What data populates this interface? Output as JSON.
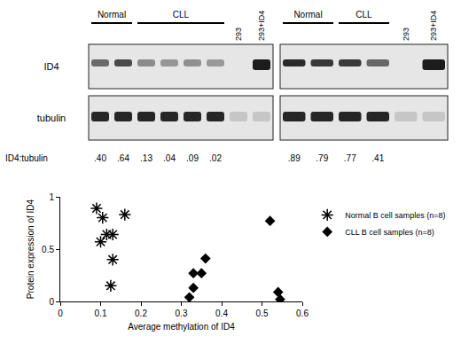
{
  "chart_data": {
    "type": "scatter",
    "x_label": "Average methylation of ID4",
    "y_label": "Protein expression of ID4",
    "xlim": [
      0,
      0.6
    ],
    "xticks": [
      0,
      0.1,
      0.2,
      0.3,
      0.4,
      0.5,
      0.6
    ],
    "ylim": [
      0,
      1
    ],
    "yticks": [
      0,
      0.5,
      1
    ],
    "grid": false,
    "legend": "right",
    "series": [
      {
        "name": "Normal B cell samples (n=8)",
        "color": "#000000",
        "marker": "asterisk",
        "x": [
          0.09,
          0.105,
          0.1,
          0.115,
          0.13,
          0.16,
          0.13,
          0.125
        ],
        "values": [
          0.89,
          0.8,
          0.57,
          0.64,
          0.64,
          0.83,
          0.4,
          0.15
        ]
      },
      {
        "name": "CLL B cell samples (n=8)",
        "color": "#000000",
        "marker": "diamond",
        "x": [
          0.32,
          0.33,
          0.33,
          0.35,
          0.36,
          0.52,
          0.54,
          0.545
        ],
        "values": [
          0.04,
          0.13,
          0.27,
          0.27,
          0.41,
          0.77,
          0.09,
          0.02
        ]
      }
    ]
  },
  "blot": {
    "rows": [
      "ID4",
      "tubulin"
    ],
    "ratio_label": "ID4:tubulin",
    "panels": [
      {
        "groups": [
          {
            "label": "Normal",
            "lanes": [
              {
                "ratio": {
                  "value": 0.4,
                  "label": ".40"
                }
              },
              {
                "ratio": {
                  "value": 0.64,
                  "label": ".64"
                }
              }
            ]
          },
          {
            "label": "CLL",
            "lanes": [
              {
                "ratio": {
                  "value": 0.13,
                  "label": ".13"
                }
              },
              {
                "ratio": {
                  "value": 0.04,
                  "label": ".04"
                }
              },
              {
                "ratio": {
                  "value": 0.09,
                  "label": ".09"
                }
              },
              {
                "ratio": {
                  "value": 0.02,
                  "label": ".02"
                }
              }
            ]
          },
          {
            "label": "293",
            "lanes": [
              {
                "ratio": null
              }
            ]
          },
          {
            "label": "293+ID4",
            "lanes": [
              {
                "ratio": null
              }
            ]
          }
        ]
      },
      {
        "groups": [
          {
            "label": "Normal",
            "lanes": [
              {
                "ratio": {
                  "value": 0.89,
                  "label": ".89"
                }
              },
              {
                "ratio": {
                  "value": 0.79,
                  "label": ".79"
                }
              }
            ]
          },
          {
            "label": "CLL",
            "lanes": [
              {
                "ratio": {
                  "value": 0.77,
                  "label": ".77"
                }
              },
              {
                "ratio": {
                  "value": 0.41,
                  "label": ".41"
                }
              }
            ]
          },
          {
            "label": "293",
            "lanes": [
              {
                "ratio": null
              }
            ]
          },
          {
            "label": "293+ID4",
            "lanes": [
              {
                "ratio": null
              }
            ]
          }
        ]
      }
    ]
  }
}
